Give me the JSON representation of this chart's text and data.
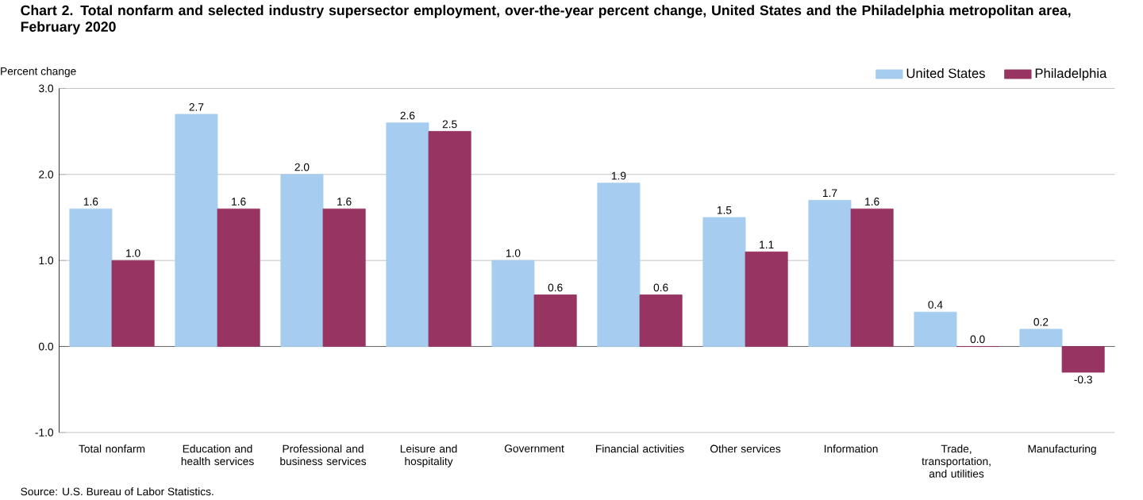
{
  "chart_data": {
    "type": "bar",
    "title": "Chart 2. Total nonfarm and selected industry supersector employment, over-the-year percent change, United States and the Philadelphia metropolitan area, February 2020",
    "ylabel": "Percent change",
    "categories": [
      "Total nonfarm",
      "Education and health services",
      "Professional and business services",
      "Leisure and hospitality",
      "Government",
      "Financial activities",
      "Other services",
      "Information",
      "Trade, transportation, and utilities",
      "Manufacturing"
    ],
    "series": [
      {
        "name": "United States",
        "color": "#a6cdf0",
        "values": [
          1.6,
          2.7,
          2.0,
          2.6,
          1.0,
          1.9,
          1.5,
          1.7,
          0.4,
          0.2
        ],
        "value_labels": [
          "1.6",
          "2.7",
          "2.0",
          "2.6",
          "1.0",
          "1.9",
          "1.5",
          "1.7",
          "0.4",
          "0.2"
        ]
      },
      {
        "name": "Philadelphia",
        "color": "#973462",
        "values": [
          1.0,
          1.6,
          1.6,
          2.5,
          0.6,
          0.6,
          1.1,
          1.6,
          0.0,
          -0.3
        ],
        "value_labels": [
          "1.0",
          "1.6",
          "1.6",
          "2.5",
          "0.6",
          "0.6",
          "1.1",
          "1.6",
          "0.0",
          "-0.3"
        ]
      }
    ],
    "ylim": [
      -1,
      3
    ],
    "yticks": [
      {
        "value": -1,
        "label": "-1.0"
      },
      {
        "value": 0,
        "label": "0.0"
      },
      {
        "value": 1,
        "label": "1.0"
      },
      {
        "value": 2,
        "label": "2.0"
      },
      {
        "value": 3,
        "label": "3.0"
      }
    ],
    "grid": "y",
    "legend": "top right",
    "annotations": [
      "Source: U.S. Bureau of Labor Statistics."
    ]
  }
}
